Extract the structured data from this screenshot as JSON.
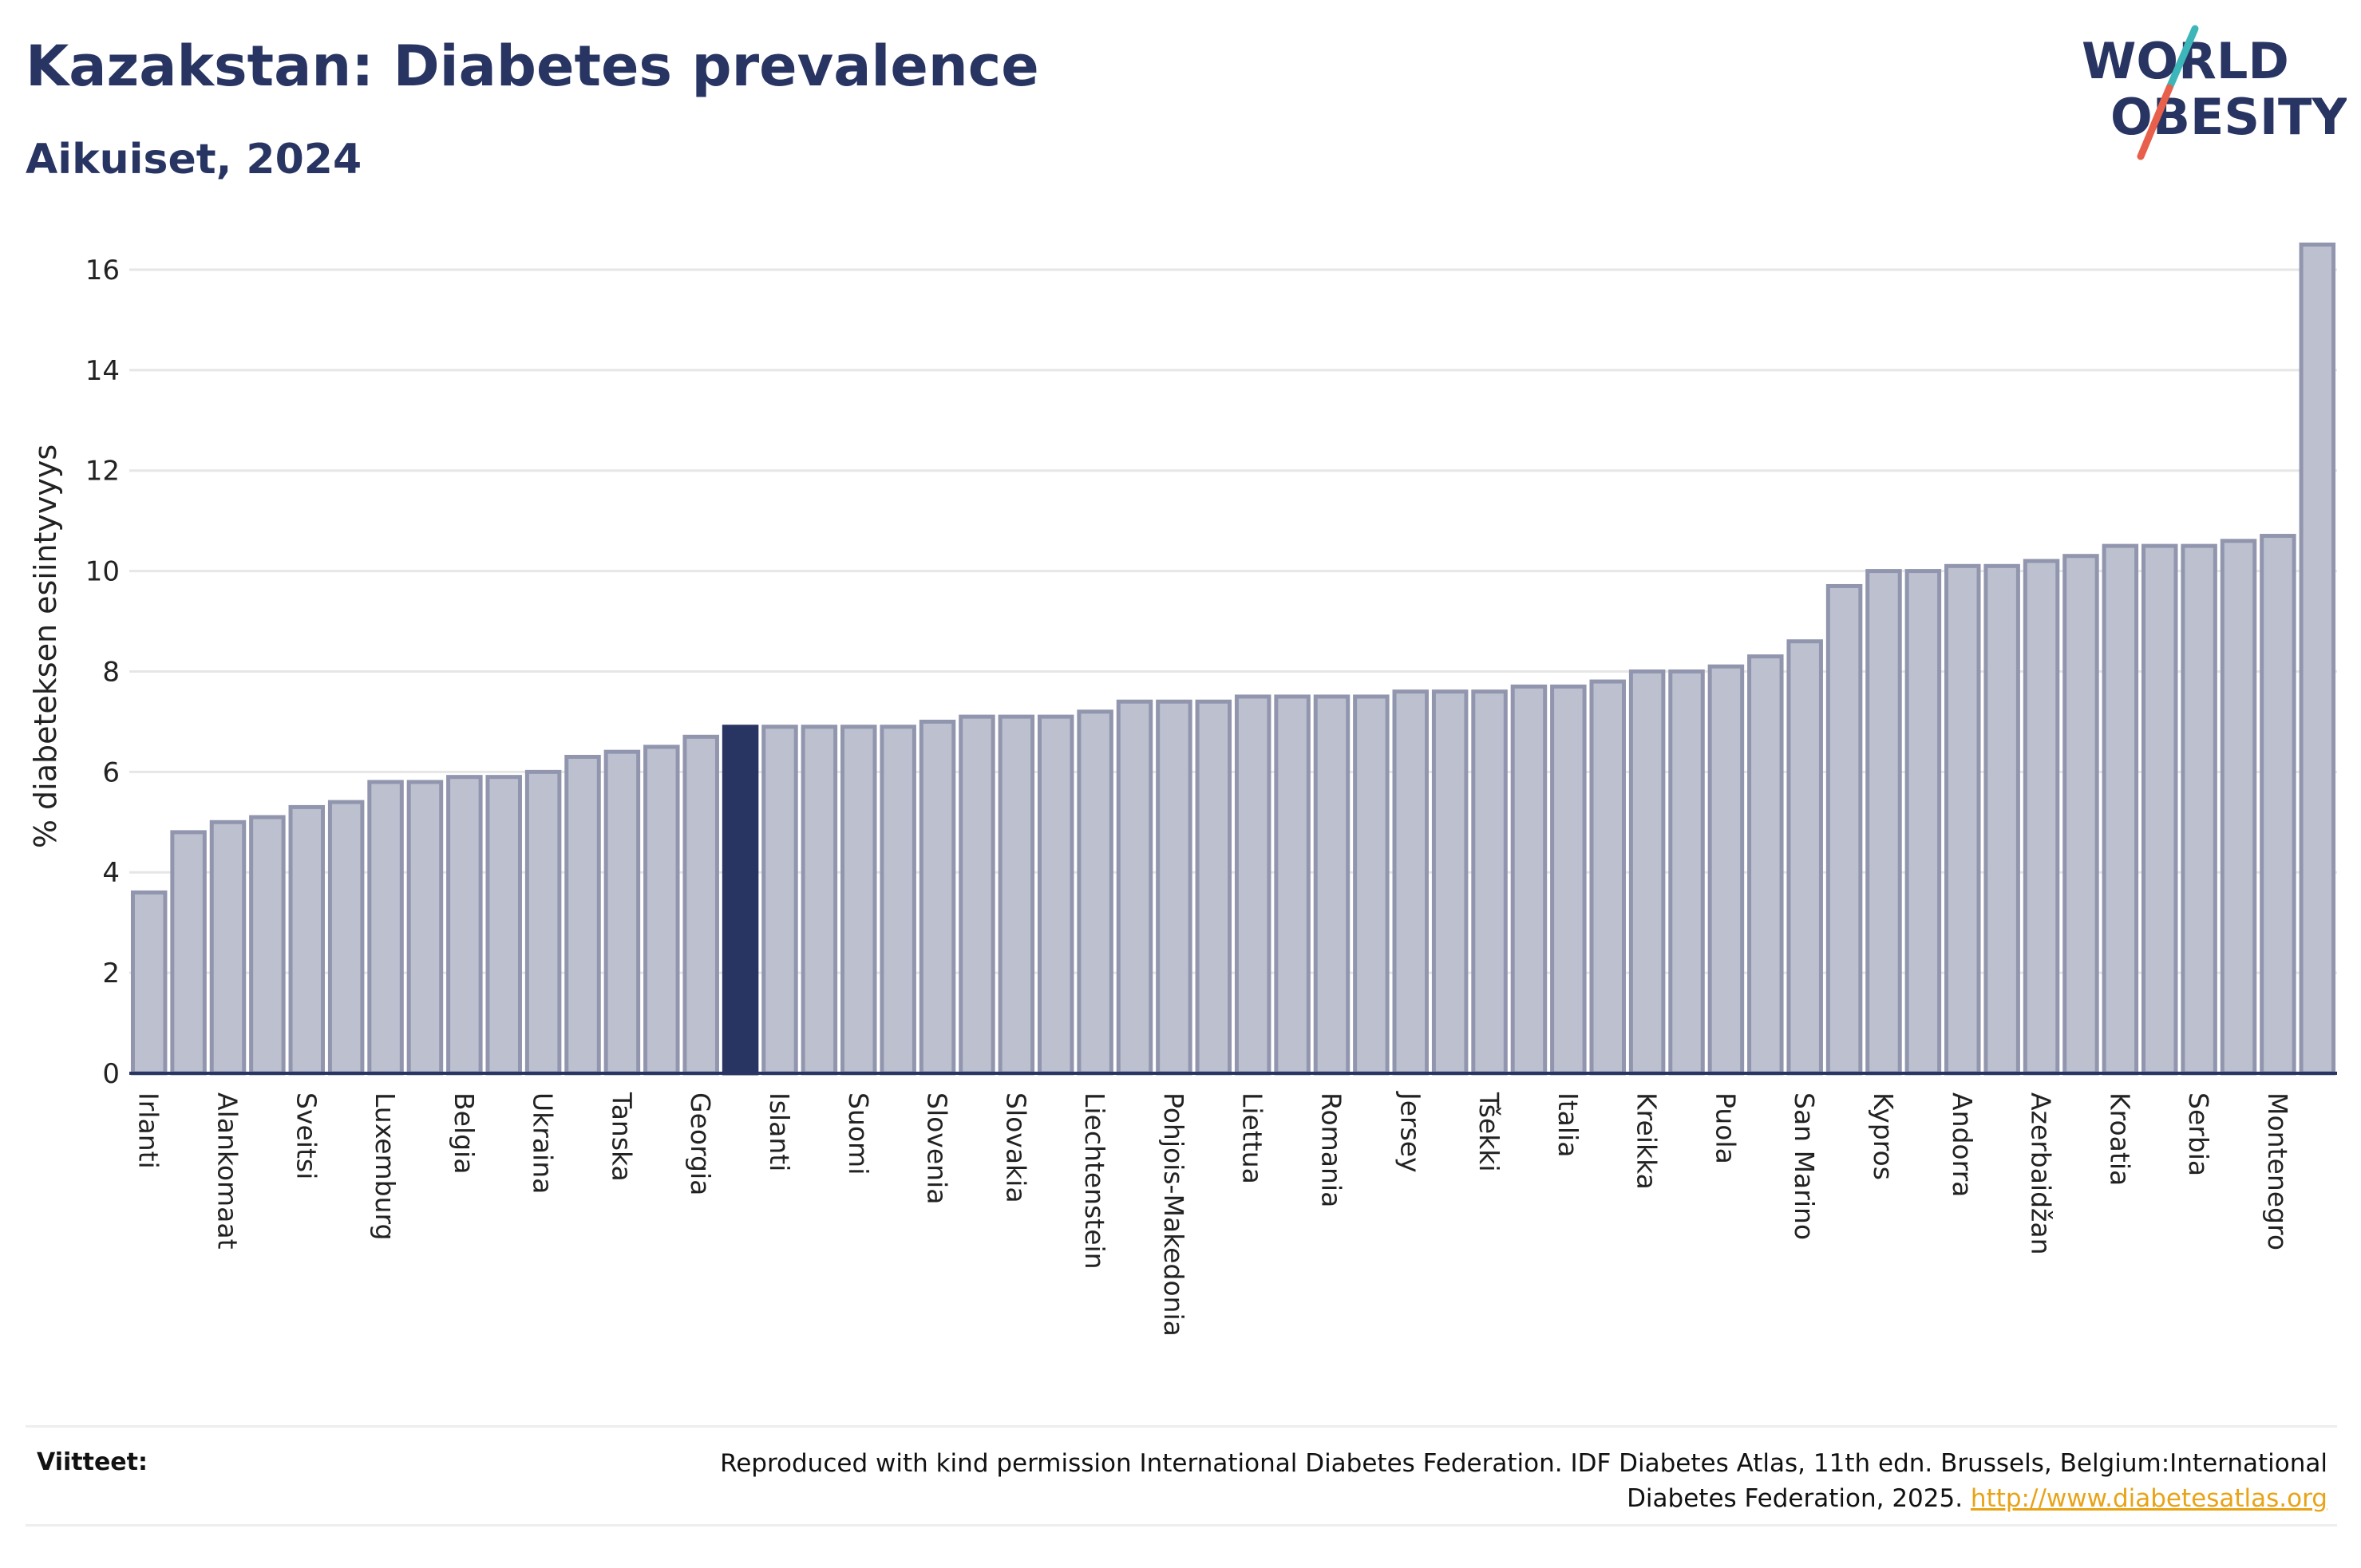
{
  "header": {
    "title": "Kazakstan: Diabetes prevalence",
    "subtitle": "Aikuiset, 2024"
  },
  "logo": {
    "line1": "WORLD",
    "line2": "OBESITY",
    "accent_teal": "#3cb6b9",
    "accent_red": "#e8604c"
  },
  "chart_data": {
    "type": "bar",
    "title": "Kazakstan: Diabetes prevalence",
    "subtitle": "Aikuiset, 2024",
    "ylabel": "% diabeteksen esiintyvyys",
    "xlabel": "",
    "ylim": [
      0,
      17
    ],
    "yticks": [
      0,
      2,
      4,
      6,
      8,
      10,
      12,
      14,
      16
    ],
    "grid": true,
    "highlight_index": 15,
    "colors": {
      "bar": "#bcc0cf",
      "bar_edge": "#9196ae",
      "highlight": "#283462",
      "axis": "#283462"
    },
    "categories": [
      "Irlanti",
      "",
      "Alankomaat",
      "",
      "Sveitsi",
      "",
      "Luxemburg",
      "",
      "Belgia",
      "",
      "Ukraina",
      "",
      "Tanska",
      "",
      "Georgia",
      "",
      "Islanti",
      "",
      "Suomi",
      "",
      "Slovenia",
      "",
      "Slovakia",
      "",
      "Liechtenstein",
      "",
      "Pohjois-Makedonia",
      "",
      "Liettua",
      "",
      "Romania",
      "",
      "Jersey",
      "",
      "Tšekki",
      "",
      "Italia",
      "",
      "Kreikka",
      "",
      "Puola",
      "",
      "San Marino",
      "",
      "Kypros",
      "",
      "Andorra",
      "",
      "Azerbaidžan",
      "",
      "Kroatia",
      "",
      "Serbia",
      "",
      "Montenegro",
      ""
    ],
    "values": [
      3.6,
      4.8,
      5.0,
      5.1,
      5.3,
      5.4,
      5.8,
      5.8,
      5.9,
      5.9,
      6.0,
      6.3,
      6.4,
      6.5,
      6.7,
      6.9,
      6.9,
      6.9,
      6.9,
      6.9,
      7.0,
      7.1,
      7.1,
      7.1,
      7.2,
      7.4,
      7.4,
      7.4,
      7.5,
      7.5,
      7.5,
      7.5,
      7.6,
      7.6,
      7.6,
      7.7,
      7.7,
      7.8,
      8.0,
      8.0,
      8.1,
      8.3,
      8.6,
      9.7,
      10.0,
      10.0,
      10.1,
      10.1,
      10.2,
      10.3,
      10.5,
      10.5,
      10.5,
      10.6,
      10.7,
      16.5
    ]
  },
  "footer": {
    "source_label": "Viitteet:",
    "source_text": "Reproduced with kind permission International Diabetes Federation. IDF Diabetes Atlas, 11th edn. Brussels, Belgium:International Diabetes Federation, 2025.",
    "source_link": "http://www.diabetesatlas.org"
  }
}
